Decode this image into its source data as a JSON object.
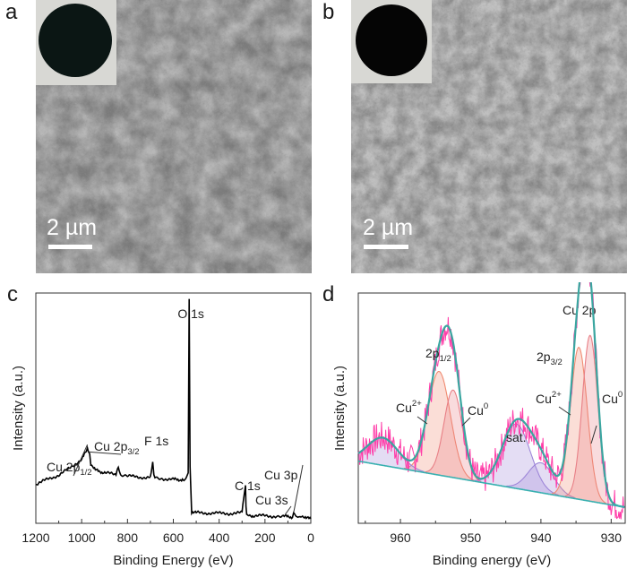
{
  "panels": {
    "a": {
      "label": "a",
      "scale_bar": "2 µm"
    },
    "b": {
      "label": "b",
      "scale_bar": "2 µm"
    },
    "c": {
      "label": "c"
    },
    "d": {
      "label": "d"
    }
  },
  "colors": {
    "sem_base": "#8e8e8e",
    "chart_c_line": "#000000",
    "chart_d_raw": "#ff3da8",
    "chart_d_envelope": "#3aa6a0",
    "chart_d_baseline": "#38b0b0",
    "chart_d_cu2plus": "#f08a70",
    "chart_d_cu0": "#e87f86",
    "chart_d_sat": "#9d86d8"
  },
  "chart_data": [
    {
      "panel": "c",
      "type": "line",
      "title": "",
      "xlabel": "Binding Energy (eV)",
      "ylabel": "Intensity (a.u.)",
      "xlim": [
        1200,
        0
      ],
      "xticks": [
        "1200",
        "1000",
        "800",
        "600",
        "400",
        "200",
        "0"
      ],
      "ylim": [
        0,
        100
      ],
      "x": [
        1200,
        1150,
        1100,
        1050,
        1000,
        980,
        975,
        965,
        960,
        940,
        900,
        850,
        840,
        830,
        800,
        750,
        700,
        690,
        685,
        680,
        650,
        600,
        560,
        550,
        535,
        531,
        527,
        520,
        500,
        450,
        400,
        350,
        300,
        290,
        285,
        283,
        280,
        270,
        250,
        200,
        150,
        120,
        100,
        80,
        75,
        60,
        50,
        40,
        20,
        0
      ],
      "y": [
        17,
        19,
        21,
        24,
        28,
        31,
        33,
        30,
        26,
        23,
        22,
        21,
        24,
        21,
        20.5,
        20,
        20,
        27,
        21,
        20,
        19.5,
        19,
        19,
        19.5,
        22,
        98,
        25,
        5,
        4.5,
        4.5,
        4.3,
        4.3,
        4.5,
        13,
        16,
        8,
        4,
        3.5,
        3.3,
        3.2,
        3.1,
        3,
        2.9,
        2.8,
        3.8,
        2.6,
        2.6,
        3.6,
        2.2,
        2
      ],
      "annotations": [
        {
          "text": "O 1s",
          "x": 531,
          "y": 100
        },
        {
          "main": "Cu 2p",
          "sub": "1/2",
          "x": 955
        },
        {
          "main": "Cu 2p",
          "sub": "3/2",
          "x": 935
        },
        {
          "text": "F 1s",
          "x": 690
        },
        {
          "text": "C 1s",
          "x": 285
        },
        {
          "text": "Cu 3s",
          "x": 120
        },
        {
          "text": "Cu 3p",
          "x": 75
        }
      ]
    },
    {
      "panel": "d",
      "type": "line",
      "title": "Cu 2p",
      "xlabel": "Binding energy (eV)",
      "ylabel": "Intensity (a.u.)",
      "xlim": [
        966,
        928
      ],
      "xticks": [
        "960",
        "950",
        "940",
        "930"
      ],
      "tick_values": [
        960,
        950,
        940,
        930
      ],
      "ylim": [
        0,
        100
      ],
      "baseline": {
        "x": [
          966,
          930,
          928
        ],
        "y": [
          27,
          8,
          7
        ]
      },
      "components": [
        {
          "name": "Cu2+ (2p1/2)",
          "center": 954.5,
          "height": 45,
          "width": 1.6
        },
        {
          "name": "Cu0 (2p1/2)",
          "center": 952.5,
          "height": 38,
          "width": 1.3
        },
        {
          "name": "sat.",
          "center": 943.5,
          "height": 28,
          "width": 2.0
        },
        {
          "name": "sat. 2",
          "center": 940.0,
          "height": 13,
          "width": 1.8
        },
        {
          "name": "sat. 3",
          "center": 962.5,
          "height": 12,
          "width": 2.2
        },
        {
          "name": "Cu2+ (2p3/2)",
          "center": 934.6,
          "height": 66,
          "width": 1.2
        },
        {
          "name": "Cu0 (2p3/2)",
          "center": 933.0,
          "height": 72,
          "width": 1.1
        }
      ],
      "annotations": [
        {
          "main": "2p",
          "sub": "1/2",
          "x": 955
        },
        {
          "main": "Cu",
          "sup": "2+",
          "x": 956
        },
        {
          "main": "Cu",
          "sup": "0",
          "x": 951
        },
        {
          "text": "sat.",
          "x": 944
        },
        {
          "main": "2p",
          "sub": "3/2",
          "x": 934
        },
        {
          "main": "Cu",
          "sup": "2+",
          "x": 936
        },
        {
          "main": "Cu",
          "sup": "0",
          "x": 931
        }
      ]
    }
  ]
}
